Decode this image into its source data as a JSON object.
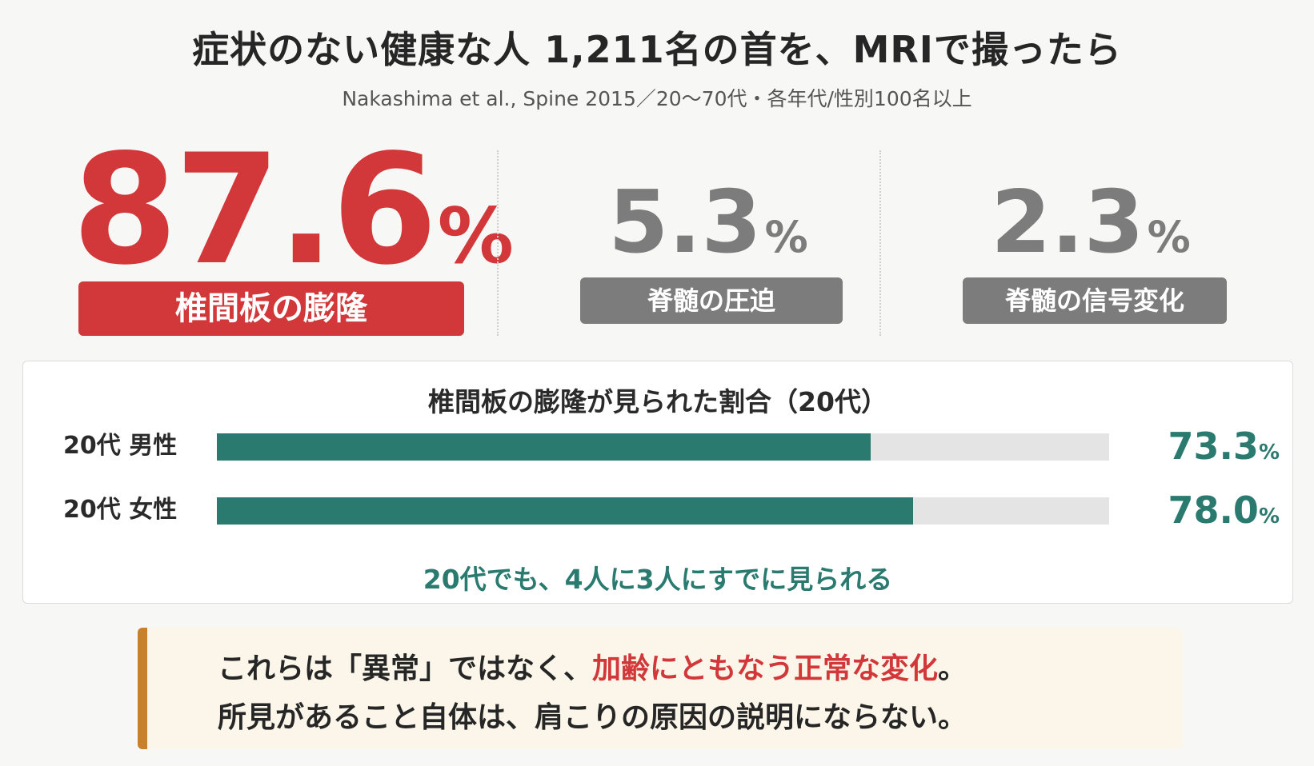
{
  "title": "症状のない健康な人 1,211名の首を、MRIで撮ったら",
  "subtitle": "Nakashima et al., Spine 2015／20〜70代・各年代/性別100名以上",
  "stats": [
    {
      "value": "87.6",
      "unit": "%",
      "label": "椎間板の膨隆",
      "color": "#d2383a"
    },
    {
      "value": "5.3",
      "unit": "%",
      "label": "脊髄の圧迫",
      "color": "#7c7c7c"
    },
    {
      "value": "2.3",
      "unit": "%",
      "label": "脊髄の信号変化",
      "color": "#7c7c7c"
    }
  ],
  "chart_data": {
    "type": "bar",
    "title": "椎間板の膨隆が見られた割合（20代）",
    "categories": [
      "20代 男性",
      "20代 女性"
    ],
    "values": [
      73.3,
      78.0
    ],
    "value_labels": [
      "73.3",
      "78.0"
    ],
    "unit": "%",
    "ylim": [
      0,
      100
    ],
    "orientation": "horizontal",
    "bar_color": "#2b7a70",
    "track_color": "#e4e4e4",
    "note": "20代でも、4人に3人にすでに見られる"
  },
  "callout": {
    "line1_before": "これらは「異常」ではなく、",
    "line1_highlight": "加齢にともなう正常な変化",
    "line1_after": "。",
    "line2": "所見があること自体は、肩こりの原因の説明にならない。",
    "accent_color": "#c7802c",
    "highlight_color": "#d2383a"
  }
}
